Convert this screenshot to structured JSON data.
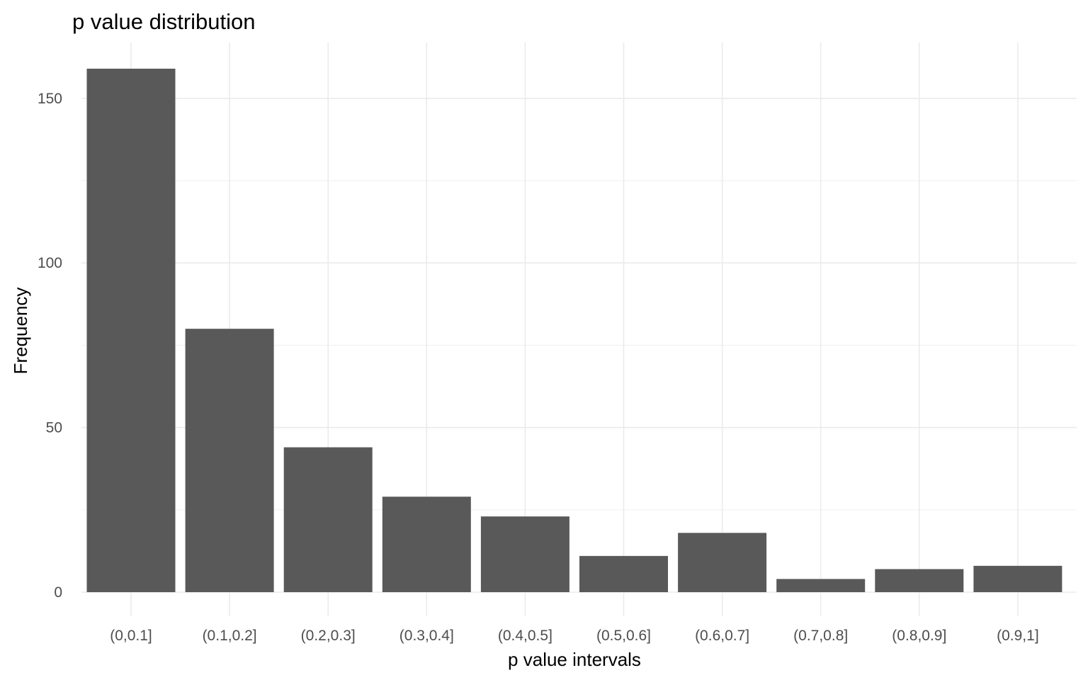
{
  "chart_data": {
    "type": "bar",
    "title": "p value distribution",
    "xlabel": "p value intervals",
    "ylabel": "Frequency",
    "categories": [
      "(0,0.1]",
      "(0.1,0.2]",
      "(0.2,0.3]",
      "(0.3,0.4]",
      "(0.4,0.5]",
      "(0.5,0.6]",
      "(0.6,0.7]",
      "(0.7,0.8]",
      "(0.8,0.9]",
      "(0.9,1]"
    ],
    "values": [
      159,
      80,
      44,
      29,
      23,
      11,
      18,
      4,
      7,
      8
    ],
    "ylim": [
      0,
      167
    ],
    "yticks": [
      0,
      50,
      100,
      150
    ],
    "yticks_minor": [
      25,
      75,
      125
    ],
    "grid": true,
    "legend": "none",
    "bar_color": "#595959"
  }
}
